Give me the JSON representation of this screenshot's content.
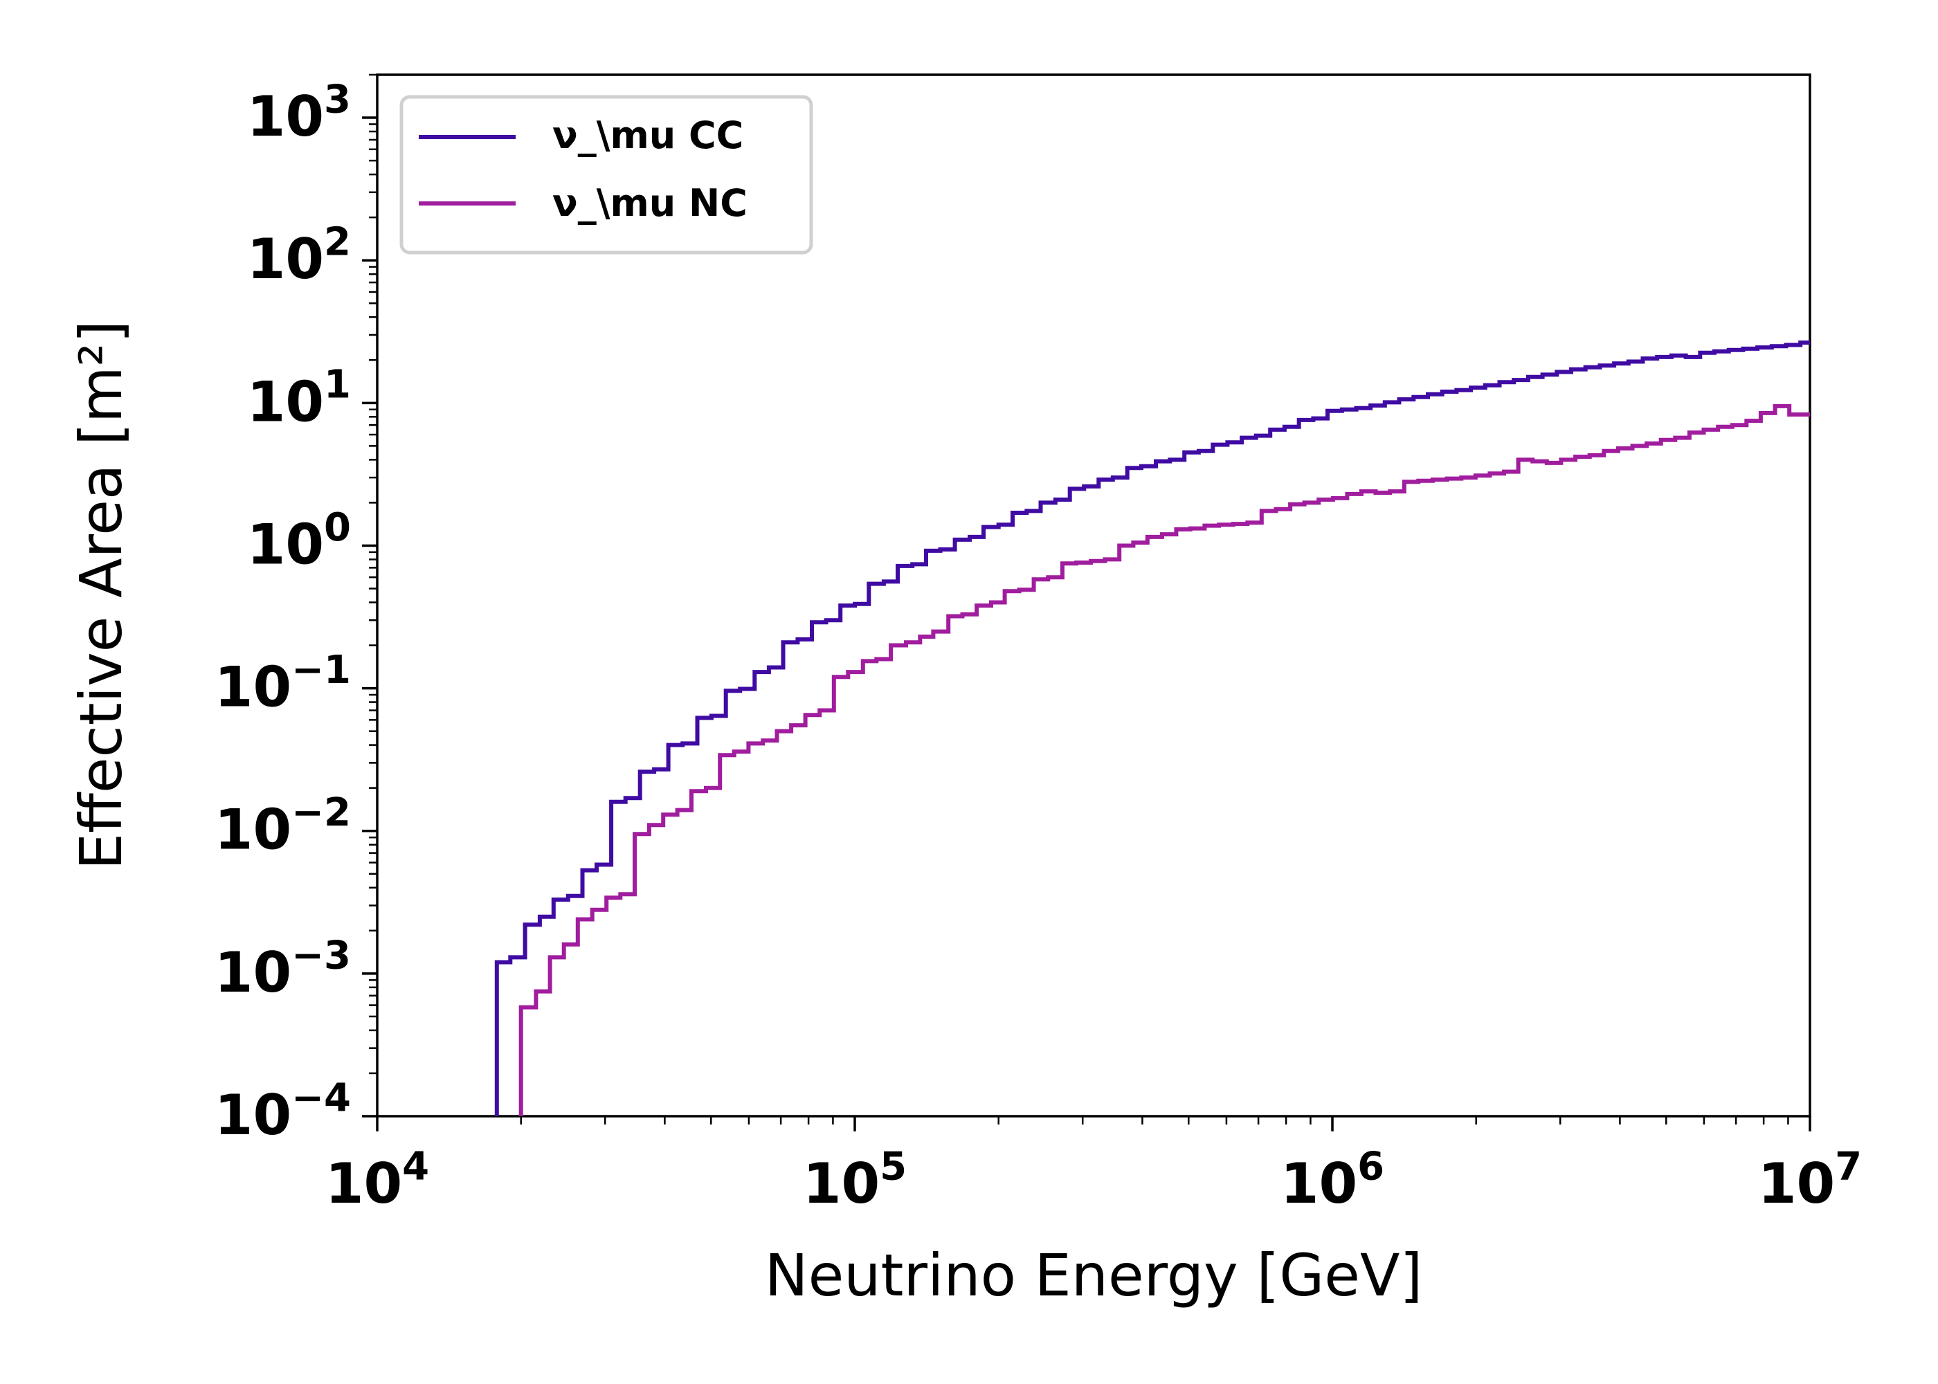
{
  "chart_data": {
    "type": "line",
    "step": true,
    "title": "",
    "xlabel": "Neutrino Energy [GeV]",
    "ylabel": "Effective Area [m²]",
    "xscale": "log",
    "yscale": "log",
    "xlim": [
      10000,
      10000000
    ],
    "ylim": [
      0.0001,
      2000
    ],
    "x_ticks": [
      10000,
      100000,
      1000000,
      10000000
    ],
    "x_tick_labels": [
      {
        "base": "10",
        "exp": "4"
      },
      {
        "base": "10",
        "exp": "5"
      },
      {
        "base": "10",
        "exp": "6"
      },
      {
        "base": "10",
        "exp": "7"
      }
    ],
    "y_ticks": [
      0.0001,
      0.001,
      0.01,
      0.1,
      1,
      10,
      100,
      1000
    ],
    "y_tick_labels": [
      {
        "base": "10",
        "exp": "−4"
      },
      {
        "base": "10",
        "exp": "−3"
      },
      {
        "base": "10",
        "exp": "−2"
      },
      {
        "base": "10",
        "exp": "−1"
      },
      {
        "base": "10",
        "exp": "0"
      },
      {
        "base": "10",
        "exp": "1"
      },
      {
        "base": "10",
        "exp": "2"
      },
      {
        "base": "10",
        "exp": "3"
      }
    ],
    "grid": false,
    "legend_position": "top-left",
    "series": [
      {
        "name": "ν_\\mu CC",
        "color": "#3f0ba3",
        "x": [
          17800,
          19000,
          20400,
          21900,
          23400,
          25100,
          26900,
          28800,
          30900,
          33100,
          35500,
          38000,
          40700,
          43600,
          46800,
          50100,
          53700,
          57500,
          61700,
          66100,
          70800,
          75900,
          81300,
          87100,
          93300,
          100000,
          107000,
          115000,
          123000,
          132000,
          141000,
          151000,
          162000,
          174000,
          186000,
          200000,
          214000,
          229000,
          245000,
          263000,
          282000,
          302000,
          324000,
          347000,
          372000,
          398000,
          427000,
          457000,
          490000,
          525000,
          562000,
          603000,
          646000,
          692000,
          741000,
          794000,
          851000,
          912000,
          977000,
          1047000,
          1122000,
          1202000,
          1288000,
          1380000,
          1479000,
          1585000,
          1698000,
          1820000,
          1950000,
          2089000,
          2239000,
          2399000,
          2570000,
          2754000,
          2951000,
          3162000,
          3388000,
          3631000,
          3890000,
          4169000,
          4467000,
          4786000,
          5129000,
          5495000,
          5888000,
          6310000,
          6761000,
          7244000,
          7762000,
          8318000,
          8913000,
          9550000
        ],
        "y": [
          0.0012,
          0.0013,
          0.0022,
          0.0025,
          0.0033,
          0.0035,
          0.0053,
          0.0058,
          0.016,
          0.017,
          0.026,
          0.027,
          0.04,
          0.041,
          0.062,
          0.064,
          0.096,
          0.099,
          0.13,
          0.14,
          0.21,
          0.22,
          0.29,
          0.3,
          0.38,
          0.39,
          0.54,
          0.56,
          0.72,
          0.74,
          0.92,
          0.94,
          1.1,
          1.15,
          1.35,
          1.4,
          1.7,
          1.75,
          2.0,
          2.1,
          2.5,
          2.6,
          2.9,
          3.0,
          3.5,
          3.6,
          3.9,
          4.0,
          4.5,
          4.6,
          5.1,
          5.3,
          5.7,
          5.9,
          6.5,
          6.8,
          7.6,
          7.8,
          8.8,
          9.0,
          9.2,
          9.6,
          10.1,
          10.6,
          11.0,
          11.5,
          12.0,
          12.3,
          12.8,
          13.3,
          14.0,
          14.5,
          15.2,
          15.8,
          16.5,
          17.2,
          17.8,
          18.3,
          18.9,
          19.5,
          20.5,
          21.0,
          21.5,
          21.0,
          22.5,
          23.0,
          23.5,
          24.0,
          24.5,
          25.0,
          25.5,
          26.5
        ]
      },
      {
        "name": "ν_\\mu NC",
        "color": "#a01d9e",
        "x": [
          20000,
          21500,
          23000,
          24600,
          26300,
          28200,
          30200,
          32300,
          34600,
          37100,
          39700,
          42500,
          45500,
          48800,
          52200,
          55900,
          59900,
          64200,
          68700,
          73600,
          78800,
          84400,
          90400,
          96800,
          104000,
          111000,
          119000,
          128000,
          137000,
          146000,
          157000,
          168000,
          180000,
          193000,
          206000,
          221000,
          237000,
          254000,
          272000,
          291000,
          312000,
          334000,
          358000,
          383000,
          410000,
          440000,
          471000,
          504000,
          540000,
          579000,
          620000,
          664000,
          711000,
          762000,
          816000,
          874000,
          936000,
          1003000,
          1074000,
          1150000,
          1232000,
          1320000,
          1414000,
          1514000,
          1622000,
          1738000,
          1862000,
          1994000,
          2136000,
          2288000,
          2451000,
          2625000,
          2812000,
          3012000,
          3227000,
          3457000,
          3703000,
          3966000,
          4249000,
          4551000,
          4875000,
          5222000,
          5594000,
          5992000,
          6419000,
          6876000,
          7365000,
          7889000,
          8451000,
          9053000
        ],
        "y": [
          0.00058,
          0.00075,
          0.0013,
          0.0016,
          0.0024,
          0.0028,
          0.0034,
          0.0036,
          0.0095,
          0.011,
          0.013,
          0.014,
          0.019,
          0.02,
          0.034,
          0.036,
          0.041,
          0.043,
          0.05,
          0.055,
          0.065,
          0.07,
          0.12,
          0.13,
          0.155,
          0.16,
          0.2,
          0.21,
          0.23,
          0.25,
          0.32,
          0.33,
          0.38,
          0.4,
          0.48,
          0.49,
          0.58,
          0.6,
          0.75,
          0.76,
          0.78,
          0.8,
          1.0,
          1.05,
          1.15,
          1.2,
          1.3,
          1.32,
          1.38,
          1.4,
          1.42,
          1.45,
          1.75,
          1.8,
          1.95,
          2.0,
          2.1,
          2.15,
          2.3,
          2.4,
          2.35,
          2.4,
          2.8,
          2.85,
          2.9,
          2.95,
          3.0,
          3.1,
          3.2,
          3.3,
          4.0,
          3.9,
          3.8,
          4.0,
          4.2,
          4.3,
          4.6,
          4.8,
          5.0,
          5.2,
          5.5,
          5.7,
          6.2,
          6.5,
          6.8,
          7.0,
          7.5,
          8.5,
          9.5,
          8.3
        ]
      }
    ]
  }
}
